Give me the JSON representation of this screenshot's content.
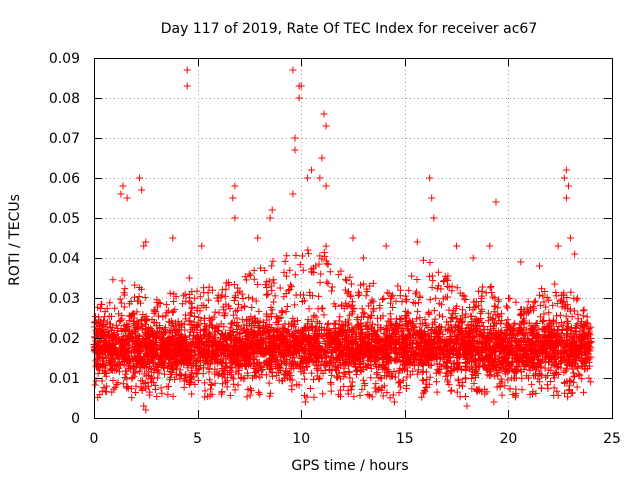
{
  "chart_data": {
    "type": "scatter",
    "title": "Day 117 of 2019, Rate Of TEC Index for receiver ac67",
    "xlabel": "GPS time / hours",
    "ylabel": "ROTI / TECUs",
    "xlim": [
      0,
      25
    ],
    "ylim": [
      0,
      0.09
    ],
    "xticks": [
      0,
      5,
      10,
      15,
      20,
      25
    ],
    "yticks": [
      0,
      0.01,
      0.02,
      0.03,
      0.04,
      0.05,
      0.06,
      0.07,
      0.08,
      0.09
    ],
    "xtick_labels": [
      "0",
      "5",
      "10",
      "15",
      "20",
      "25"
    ],
    "ytick_labels": [
      "0",
      "0.01",
      "0.02",
      "0.03",
      "0.04",
      "0.05",
      "0.06",
      "0.07",
      "0.08",
      "0.09"
    ],
    "grid": true,
    "marker": "+",
    "color": "#ff0000",
    "series": [
      {
        "name": "ROTI",
        "x_range": [
          0,
          24
        ],
        "typical_band": [
          0.005,
          0.03
        ],
        "envelope": [
          [
            0,
            0.026
          ],
          [
            1,
            0.036
          ],
          [
            2,
            0.034
          ],
          [
            3,
            0.03
          ],
          [
            4,
            0.032
          ],
          [
            5,
            0.033
          ],
          [
            6,
            0.033
          ],
          [
            7,
            0.035
          ],
          [
            8,
            0.038
          ],
          [
            9,
            0.04
          ],
          [
            10,
            0.042
          ],
          [
            11,
            0.045
          ],
          [
            12,
            0.036
          ],
          [
            13,
            0.034
          ],
          [
            14,
            0.034
          ],
          [
            15,
            0.034
          ],
          [
            16,
            0.04
          ],
          [
            17,
            0.036
          ],
          [
            18,
            0.03
          ],
          [
            19,
            0.034
          ],
          [
            20,
            0.03
          ],
          [
            21,
            0.03
          ],
          [
            22,
            0.034
          ],
          [
            23,
            0.032
          ],
          [
            24,
            0.026
          ]
        ],
        "points": [
          [
            1.3,
            0.056
          ],
          [
            1.4,
            0.058
          ],
          [
            1.6,
            0.055
          ],
          [
            2.2,
            0.06
          ],
          [
            2.3,
            0.057
          ],
          [
            2.5,
            0.044
          ],
          [
            2.4,
            0.043
          ],
          [
            4.5,
            0.087
          ],
          [
            4.5,
            0.083
          ],
          [
            4.6,
            0.035
          ],
          [
            6.8,
            0.058
          ],
          [
            6.7,
            0.055
          ],
          [
            6.8,
            0.05
          ],
          [
            8.6,
            0.052
          ],
          [
            8.5,
            0.05
          ],
          [
            9.6,
            0.056
          ],
          [
            9.7,
            0.07
          ],
          [
            9.7,
            0.067
          ],
          [
            9.6,
            0.087
          ],
          [
            9.9,
            0.083
          ],
          [
            10.0,
            0.083
          ],
          [
            9.9,
            0.08
          ],
          [
            10.3,
            0.06
          ],
          [
            10.5,
            0.062
          ],
          [
            11.0,
            0.065
          ],
          [
            11.1,
            0.076
          ],
          [
            11.2,
            0.073
          ],
          [
            10.9,
            0.06
          ],
          [
            11.2,
            0.058
          ],
          [
            12.5,
            0.045
          ],
          [
            14.1,
            0.043
          ],
          [
            16.2,
            0.06
          ],
          [
            16.3,
            0.055
          ],
          [
            16.4,
            0.05
          ],
          [
            17.5,
            0.043
          ],
          [
            19.4,
            0.054
          ],
          [
            19.1,
            0.043
          ],
          [
            20.6,
            0.039
          ],
          [
            22.4,
            0.043
          ],
          [
            22.7,
            0.06
          ],
          [
            22.8,
            0.062
          ],
          [
            22.9,
            0.058
          ],
          [
            22.8,
            0.055
          ],
          [
            23.0,
            0.045
          ],
          [
            23.2,
            0.041
          ],
          [
            5.2,
            0.043
          ],
          [
            3.8,
            0.045
          ],
          [
            7.9,
            0.045
          ],
          [
            13.0,
            0.04
          ],
          [
            15.6,
            0.044
          ],
          [
            18.3,
            0.04
          ],
          [
            21.5,
            0.038
          ],
          [
            2.4,
            0.003
          ],
          [
            2.5,
            0.002
          ],
          [
            10.2,
            0.004
          ],
          [
            14.5,
            0.004
          ],
          [
            18.0,
            0.003
          ],
          [
            19.3,
            0.004
          ]
        ]
      }
    ]
  }
}
